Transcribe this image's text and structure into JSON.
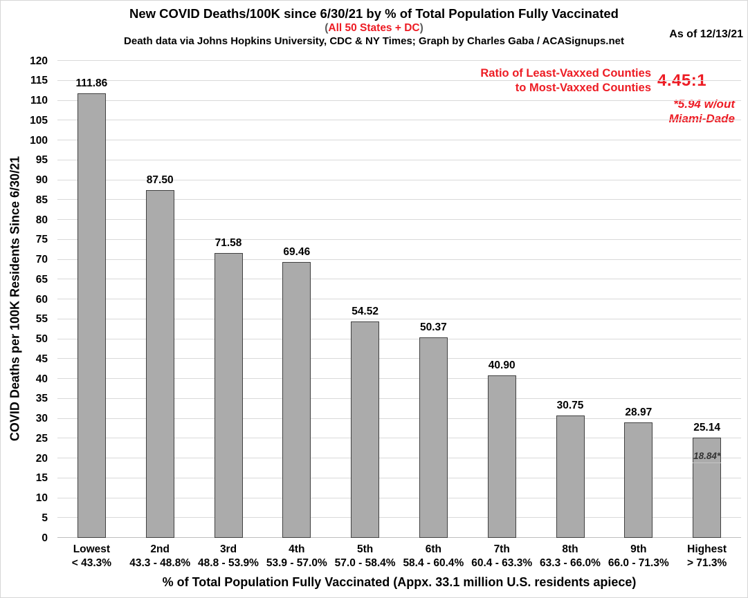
{
  "header": {
    "subtitle": {
      "open": "(",
      "text": "All 50 States + DC",
      "close": ")"
    },
    "credit": "Death data via Johns Hopkins University, CDC & NY Times; Graph by Charles Gaba / ACASignups.net",
    "as_of": "As of 12/13/21"
  },
  "ratio_annotation": {
    "label_line1": "Ratio of Least-Vaxxed Counties",
    "label_line2": "to Most-Vaxxed Counties",
    "value": "4.45:1",
    "footnote_line1": "*5.94 w/out",
    "footnote_line2": "Miami-Dade"
  },
  "chart_data": {
    "type": "bar",
    "title": "New COVID Deaths/100K since 6/30/21 by % of Total Population Fully Vaccinated",
    "xlabel": "% of Total Population Fully Vaccinated (Appx. 33.1 million U.S. residents apiece)",
    "ylabel": "COVID Deaths per 100K Residents Since 6/30/21",
    "ylim": [
      0,
      120
    ],
    "ytick_step": 5,
    "grid": true,
    "legend": false,
    "categories": [
      {
        "ordinal": "Lowest",
        "range": "< 43.3%"
      },
      {
        "ordinal": "2nd",
        "range": "43.3 - 48.8%"
      },
      {
        "ordinal": "3rd",
        "range": "48.8 - 53.9%"
      },
      {
        "ordinal": "4th",
        "range": "53.9 - 57.0%"
      },
      {
        "ordinal": "5th",
        "range": "57.0 - 58.4%"
      },
      {
        "ordinal": "6th",
        "range": "58.4 - 60.4%"
      },
      {
        "ordinal": "7th",
        "range": "60.4 - 63.3%"
      },
      {
        "ordinal": "8th",
        "range": "63.3 - 66.0%"
      },
      {
        "ordinal": "9th",
        "range": "66.0 - 71.3%"
      },
      {
        "ordinal": "Highest",
        "range": "> 71.3%"
      }
    ],
    "values": [
      111.86,
      87.5,
      71.58,
      69.46,
      54.52,
      50.37,
      40.9,
      30.75,
      28.97,
      25.14
    ],
    "value_labels": [
      "111.86",
      "87.50",
      "71.58",
      "69.46",
      "54.52",
      "50.37",
      "40.90",
      "30.75",
      "28.97",
      "25.14"
    ],
    "bar_annotation": {
      "index": 9,
      "text": "18.84*",
      "value": 18.84
    },
    "colors": {
      "bar_fill": "#ababab",
      "bar_border": "#404040",
      "grid": "#d9d9d9",
      "accent_red": "#ed1c24",
      "paren_gray": "#595959"
    }
  }
}
